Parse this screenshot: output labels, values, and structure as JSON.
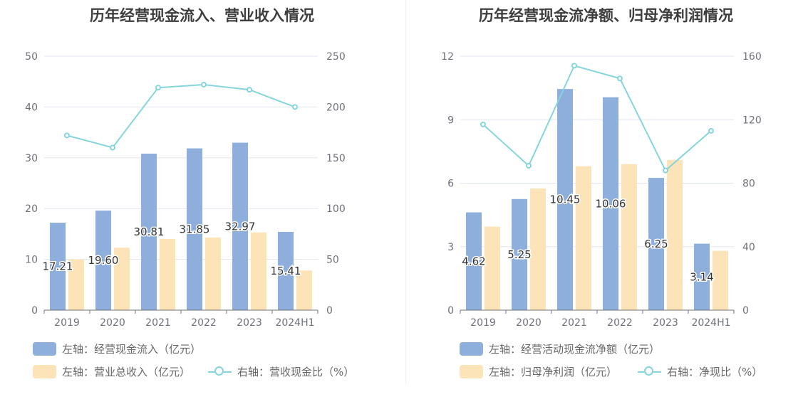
{
  "charts": [
    {
      "title": "历年经营现金流入、营业收入情况",
      "legend": [
        {
          "label": "左轴：经营现金流入（亿元）",
          "type": "bar",
          "color": "#8eaedb"
        },
        {
          "label": "左轴：营业总收入（亿元）",
          "type": "bar",
          "color": "#fde4b8"
        },
        {
          "label": "右轴：营收现金比（%）",
          "type": "line",
          "color": "#86d5dc"
        }
      ]
    },
    {
      "title": "历年经营现金流净额、归母净利润情况",
      "legend": [
        {
          "label": "左轴：经营活动现金流净额（亿元）",
          "type": "bar",
          "color": "#8eaedb"
        },
        {
          "label": "左轴：归母净利润（亿元）",
          "type": "bar",
          "color": "#fde4b8"
        },
        {
          "label": "右轴：净现比（%）",
          "type": "line",
          "color": "#86d5dc"
        }
      ]
    }
  ],
  "chart_data": [
    {
      "type": "bar",
      "title": "历年经营现金流入、营业收入情况",
      "categories": [
        "2019",
        "2020",
        "2021",
        "2022",
        "2023",
        "2024H1"
      ],
      "ylim_left": [
        0,
        50
      ],
      "ylim_right": [
        0,
        250
      ],
      "yticks_left": [
        "0",
        "10",
        "20",
        "30",
        "40",
        "50"
      ],
      "yticks_right": [
        "0",
        "50",
        "100",
        "150",
        "200",
        "250"
      ],
      "grid": true,
      "legend_position": "bottom",
      "series": [
        {
          "name": "左轴：经营现金流入（亿元）",
          "axis": "left",
          "type": "bar",
          "color": "#8eaedb",
          "values": [
            17.21,
            19.6,
            30.81,
            31.85,
            32.97,
            15.41
          ],
          "labels": [
            "17.21",
            "19.60",
            "30.81",
            "31.85",
            "32.97",
            "15.41"
          ]
        },
        {
          "name": "左轴：营业总收入（亿元）",
          "axis": "left",
          "type": "bar",
          "color": "#fde4b8",
          "values": [
            10.0,
            12.3,
            14.0,
            14.3,
            15.3,
            7.8
          ]
        },
        {
          "name": "右轴：营收现金比（%）",
          "axis": "right",
          "type": "line",
          "color": "#86d5dc",
          "values": [
            172,
            160,
            219,
            222,
            217,
            200
          ]
        }
      ]
    },
    {
      "type": "bar",
      "title": "历年经营现金流净额、归母净利润情况",
      "categories": [
        "2019",
        "2020",
        "2021",
        "2022",
        "2023",
        "2024H1"
      ],
      "ylim_left": [
        0,
        12
      ],
      "ylim_right": [
        0,
        160
      ],
      "yticks_left": [
        "0",
        "3",
        "6",
        "9",
        "12"
      ],
      "yticks_right": [
        "0",
        "40",
        "80",
        "120",
        "160"
      ],
      "grid": true,
      "legend_position": "bottom",
      "series": [
        {
          "name": "左轴：经营活动现金流净额（亿元）",
          "axis": "left",
          "type": "bar",
          "color": "#8eaedb",
          "values": [
            4.62,
            5.25,
            10.45,
            10.06,
            6.25,
            3.14
          ],
          "labels": [
            "4.62",
            "5.25",
            "10.45",
            "10.06",
            "6.25",
            "3.14"
          ]
        },
        {
          "name": "左轴：归母净利润（亿元）",
          "axis": "left",
          "type": "bar",
          "color": "#fde4b8",
          "values": [
            3.95,
            5.75,
            6.8,
            6.9,
            7.1,
            2.8
          ]
        },
        {
          "name": "右轴：净现比（%）",
          "axis": "right",
          "type": "line",
          "color": "#86d5dc",
          "values": [
            117,
            91,
            154,
            146,
            88,
            113
          ]
        }
      ]
    }
  ]
}
